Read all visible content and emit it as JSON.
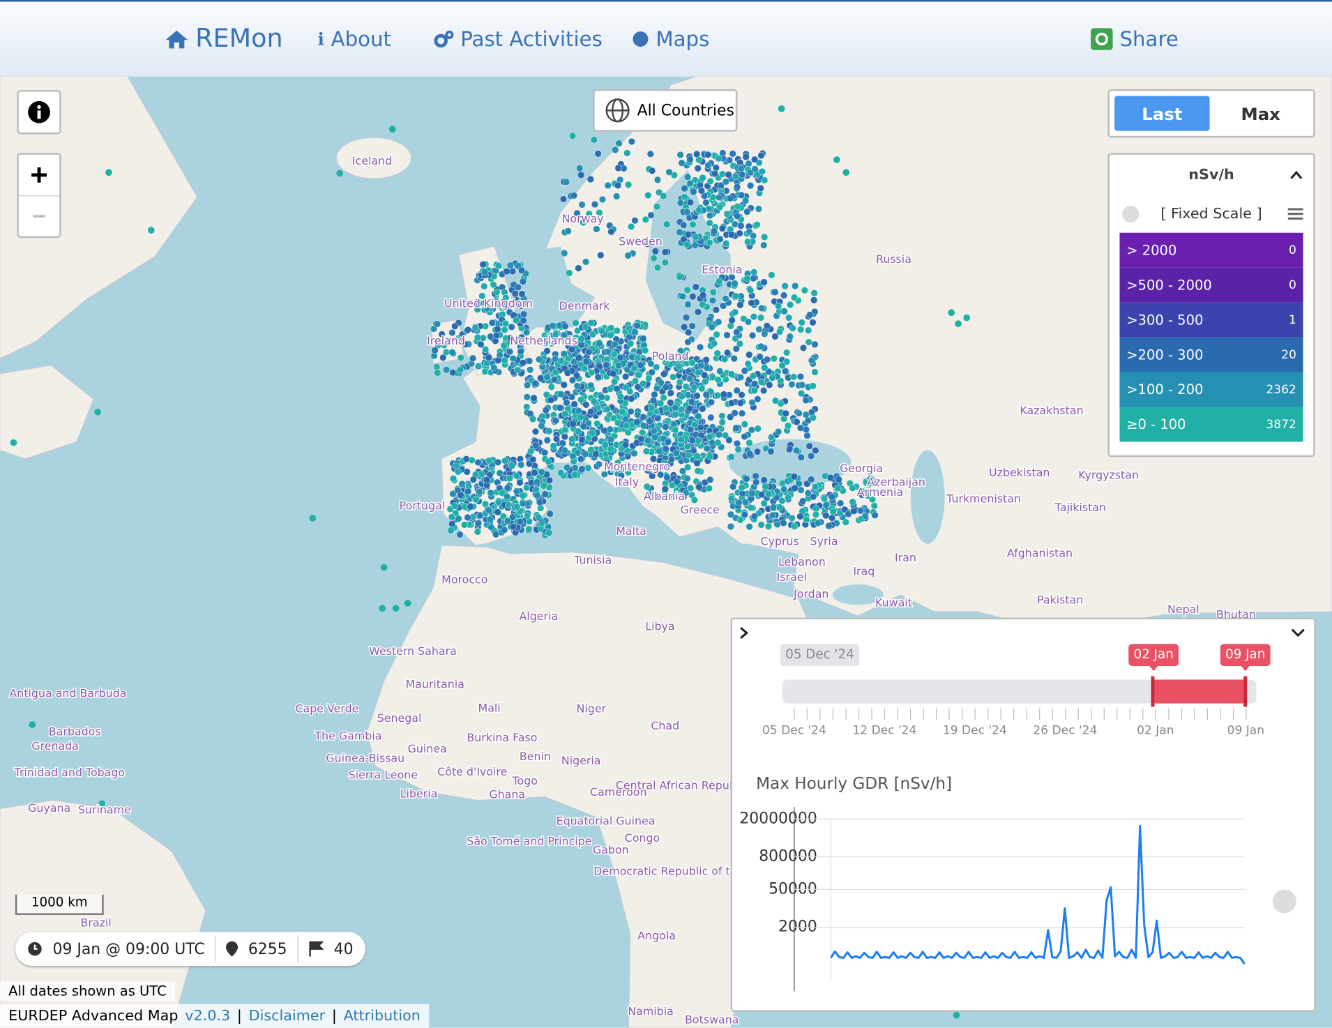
{
  "nav": {
    "brand": "REMon",
    "items": [
      "About",
      "Past Activities",
      "Maps"
    ],
    "share": "Share"
  },
  "map": {
    "country_selector": "All Countries",
    "labels": [
      "Iceland",
      "Norway",
      "Sweden",
      "Russia",
      "Estonia",
      "United Kingdom",
      "Denmark",
      "Ireland",
      "Netherlands",
      "Poland",
      "Kazakhstan",
      "Georgia",
      "Azerbaijan",
      "Armenia",
      "Uzbekistan",
      "Kyrgyzstan",
      "Turkmenistan",
      "Tajikistan",
      "Montenegro",
      "Italy",
      "Albania",
      "Portugal",
      "Greece",
      "Malta",
      "Cyprus",
      "Syria",
      "Afghanistan",
      "Tunisia",
      "Iran",
      "Lebanon",
      "Israel",
      "Iraq",
      "Morocco",
      "Jordan",
      "Kuwait",
      "Pakistan",
      "Nepal",
      "Bhutan",
      "Algeria",
      "Libya",
      "Western Sahara",
      "Mauritania",
      "Cape Verde",
      "Mali",
      "Niger",
      "Senegal",
      "Chad",
      "The Gambia",
      "Burkina Faso",
      "Guinea-Bissau",
      "Guinea",
      "Benin",
      "Nigeria",
      "Sierra Leone",
      "Côte d'Ivoire",
      "Togo",
      "Liberia",
      "Ghana",
      "Cameroon",
      "Central African Republic",
      "Equatorial Guinea",
      "São Tomé and Principe",
      "Congo",
      "Gabon",
      "Democratic Republic of the Congo",
      "Angola",
      "Namibia",
      "Botswana",
      "Brazil",
      "Guyana",
      "Suriname",
      "Trinidad and Tobago",
      "Grenada",
      "Antigua and Barbuda",
      "Barbados"
    ],
    "scale": "1000 km",
    "info_bar": {
      "time": "09 Jan @ 09:00 UTC",
      "stations": "6255",
      "countries": "40"
    },
    "utc_note": "All dates shown as UTC",
    "footer": [
      "EURDEP Advanced Map",
      "v2.0.3",
      "Disclaimer",
      "Attribution"
    ]
  },
  "toggle": [
    "Last",
    "Max"
  ],
  "legend": {
    "unit": "nSv/h",
    "scale_mode": "[ Fixed Scale ]",
    "rows": [
      {
        "range": "> 2000",
        "count": "0",
        "color": "#6a1fb0"
      },
      {
        "range": ">500 - 2000",
        "count": "0",
        "color": "#5a22a6"
      },
      {
        "range": ">300 - 500",
        "count": "1",
        "color": "#3b44ac"
      },
      {
        "range": ">200 - 300",
        "count": "20",
        "color": "#2a6aae"
      },
      {
        "range": ">100 - 200",
        "count": "2362",
        "color": "#2590b2"
      },
      {
        "range": "≥0 - 100",
        "count": "3872",
        "color": "#20b0a6"
      }
    ]
  },
  "timeline": {
    "start_badge": "05 Dec '24",
    "selection": [
      "02 Jan",
      "09 Jan"
    ],
    "ticks": [
      "05 Dec '24",
      "12 Dec '24",
      "19 Dec '24",
      "26 Dec '24",
      "02 Jan",
      "09 Jan"
    ]
  },
  "chart_data": {
    "type": "line",
    "title": "Max Hourly GDR [nSv/h]",
    "color": "#1e7ef0",
    "log_scale": true,
    "grid": true,
    "ylim": [
      10,
      20000000
    ],
    "yticks": [
      2000,
      50000,
      800000,
      20000000
    ],
    "values": [
      150,
      260,
      160,
      150,
      240,
      150,
      170,
      150,
      230,
      160,
      150,
      250,
      150,
      160,
      150,
      240,
      150,
      170,
      150,
      230,
      160,
      150,
      250,
      150,
      160,
      150,
      240,
      150,
      170,
      150,
      230,
      160,
      150,
      250,
      150,
      160,
      150,
      240,
      150,
      170,
      150,
      230,
      160,
      150,
      250,
      150,
      160,
      150,
      240,
      150,
      170,
      150,
      1600,
      160,
      150,
      260,
      10000,
      150,
      170,
      240,
      150,
      300,
      160,
      150,
      280,
      150,
      20000,
      60000,
      170,
      250,
      160,
      150,
      300,
      150,
      11000000,
      2500,
      160,
      240,
      3500,
      150,
      170,
      230,
      150,
      160,
      250,
      150,
      160,
      150,
      240,
      150,
      170,
      150,
      230,
      160,
      150,
      250,
      150,
      160,
      150,
      90
    ]
  }
}
